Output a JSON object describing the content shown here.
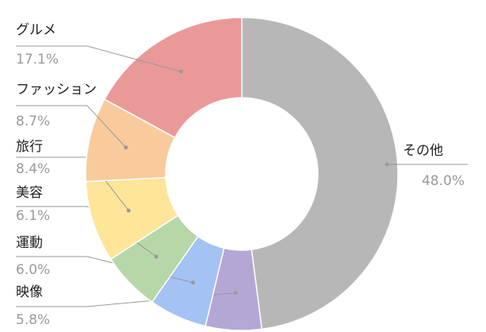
{
  "chart_data": {
    "type": "donut",
    "categories": [
      "その他",
      "映像",
      "運動",
      "美容",
      "旅行",
      "ファッション",
      "グルメ"
    ],
    "values": [
      48.0,
      5.8,
      6.0,
      6.1,
      8.4,
      8.7,
      17.1
    ],
    "value_labels": [
      "48.0%",
      "5.8%",
      "6.0%",
      "6.1%",
      "8.4%",
      "8.7%",
      "17.1%"
    ],
    "colors": [
      "#b7b7b7",
      "#b4a7d6",
      "#a4c2f4",
      "#b6d7a8",
      "#ffe599",
      "#f9cb9c",
      "#ea9999"
    ]
  }
}
